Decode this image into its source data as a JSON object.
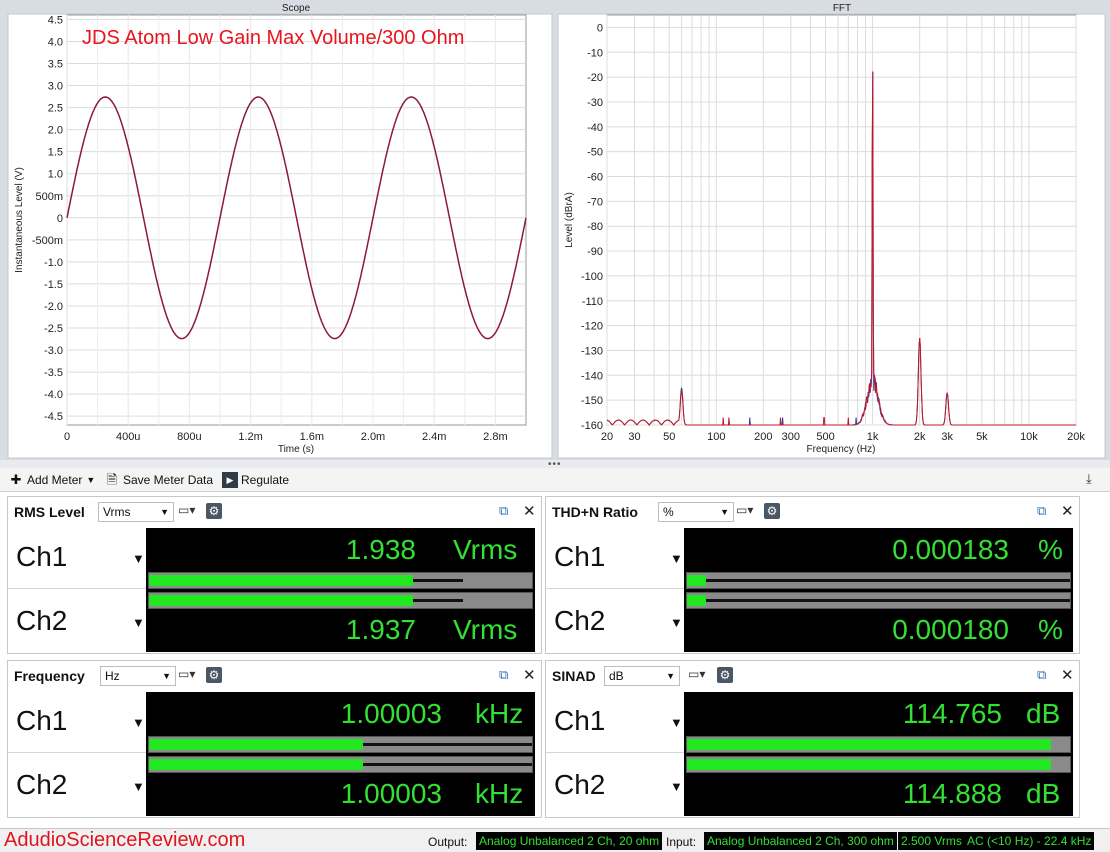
{
  "scope": {
    "title": "Scope",
    "annotation": "JDS Atom Low Gain Max Volume/300 Ohm",
    "ylabel": "Instantaneous Level (V)",
    "xlabel": "Time (s)",
    "ytick_labels": [
      "4.5",
      "4.0",
      "3.5",
      "3.0",
      "2.5",
      "2.0",
      "1.5",
      "1.0",
      "500m",
      "0",
      "-500m",
      "-1.0",
      "-1.5",
      "-2.0",
      "-2.5",
      "-3.0",
      "-3.5",
      "-4.0",
      "-4.5"
    ],
    "xtick_labels": [
      "0",
      "400u",
      "800u",
      "1.2m",
      "1.6m",
      "2.0m",
      "2.4m",
      "2.8m"
    ]
  },
  "fft": {
    "title": "FFT",
    "ylabel": "Level (dBrA)",
    "xlabel": "Frequency (Hz)",
    "ytick_labels": [
      "0",
      "-10",
      "-20",
      "-30",
      "-40",
      "-50",
      "-60",
      "-70",
      "-80",
      "-90",
      "-100",
      "-110",
      "-120",
      "-130",
      "-140",
      "-150",
      "-160"
    ],
    "xtick_labels": [
      "20",
      "30",
      "50",
      "100",
      "200",
      "300",
      "500",
      "1k",
      "2k",
      "3k",
      "5k",
      "10k",
      "20k"
    ]
  },
  "chart_data": [
    {
      "type": "line",
      "title": "Scope",
      "xlabel": "Time (s)",
      "ylabel": "Instantaneous Level (V)",
      "xlim": [
        0,
        0.003
      ],
      "ylim": [
        -4.7,
        4.6
      ],
      "grid": true,
      "series": [
        {
          "amplitude_v": 2.74,
          "frequency_hz": 1000,
          "phase": "sine starting at 0 V, rising",
          "color": "#8b1a3a"
        }
      ]
    },
    {
      "type": "line",
      "title": "FFT",
      "xlabel": "Frequency (Hz)",
      "ylabel": "Level (dBrA)",
      "xscale": "log",
      "xlim": [
        20,
        20000
      ],
      "ylim": [
        -160,
        5
      ],
      "grid": true,
      "noise_floor_db": -160,
      "series": [
        {
          "color": "#c0182a",
          "peaks": [
            [
              60,
              -146
            ],
            [
              1000,
              -8
            ],
            [
              2000,
              -125
            ],
            [
              3000,
              -147
            ]
          ]
        },
        {
          "color": "#2a3a9a",
          "peaks": [
            [
              60,
              -145
            ],
            [
              1000,
              -8
            ],
            [
              2000,
              -125
            ],
            [
              3000,
              -147
            ]
          ]
        }
      ]
    }
  ],
  "toolbar": {
    "add_meter": "Add Meter",
    "save_meter_data": "Save Meter Data",
    "regulate": "Regulate"
  },
  "meters": [
    {
      "title": "RMS Level",
      "unit": "Vrms",
      "channels": [
        {
          "label": "Ch1",
          "value": "1.938",
          "unit": "Vrms",
          "bar_fraction": 0.69,
          "peak_fraction": 0.82
        },
        {
          "label": "Ch2",
          "value": "1.937",
          "unit": "Vrms",
          "bar_fraction": 0.69,
          "peak_fraction": 0.82
        }
      ]
    },
    {
      "title": "THD+N Ratio",
      "unit": "%",
      "channels": [
        {
          "label": "Ch1",
          "value": "0.000183",
          "unit": "%",
          "bar_fraction": 0.05,
          "peak_fraction": 1.0
        },
        {
          "label": "Ch2",
          "value": "0.000180",
          "unit": "%",
          "bar_fraction": 0.05,
          "peak_fraction": 1.0
        }
      ]
    },
    {
      "title": "Frequency",
      "unit": "Hz",
      "channels": [
        {
          "label": "Ch1",
          "value": "1.00003",
          "unit": "kHz",
          "bar_fraction": 0.56,
          "peak_fraction": 1.0
        },
        {
          "label": "Ch2",
          "value": "1.00003",
          "unit": "kHz",
          "bar_fraction": 0.56,
          "peak_fraction": 1.0
        }
      ]
    },
    {
      "title": "SINAD",
      "unit": "dB",
      "channels": [
        {
          "label": "Ch1",
          "value": "114.765",
          "unit": "dB",
          "bar_fraction": 0.95,
          "peak_fraction": 0.95
        },
        {
          "label": "Ch2",
          "value": "114.888",
          "unit": "dB",
          "bar_fraction": 0.95,
          "peak_fraction": 0.95
        }
      ]
    }
  ],
  "status": {
    "watermark": "AdudioScienceReview.com",
    "output_label": "Output:",
    "output_value": "Analog Unbalanced 2 Ch, 20 ohm",
    "input_label": "Input:",
    "input_value": "Analog Unbalanced 2 Ch, 300 ohm",
    "input_level": "2.500 Vrms",
    "input_filter": "AC (<10 Hz) - 22.4 kHz"
  },
  "icons": {
    "add": "plus-icon",
    "save": "save-data-icon",
    "regulate": "play-icon",
    "graph": "graph-icon",
    "settings": "gear-icon",
    "popout": "popout-icon",
    "close": "close-icon",
    "download": "download-icon"
  }
}
